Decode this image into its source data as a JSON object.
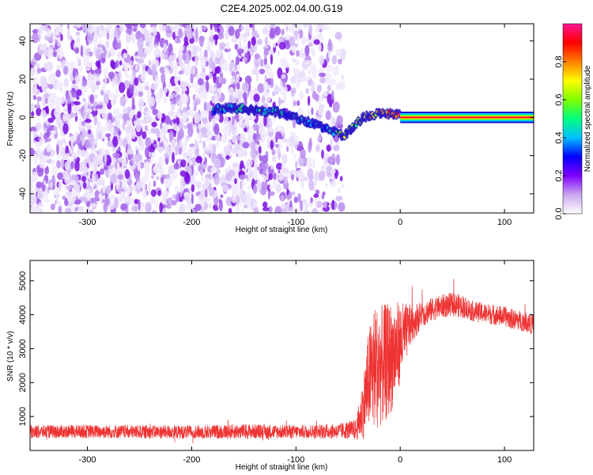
{
  "title": "C2E4.2025.002.04.00.G19",
  "chart_data": [
    {
      "type": "heatmap",
      "panel": "top",
      "xlabel": "Height of straight line (km)",
      "ylabel": "Frequency (Hz)",
      "xlim": [
        -355,
        128
      ],
      "ylim": [
        -50,
        49
      ],
      "xticks": [
        -300,
        -200,
        -100,
        0,
        100
      ],
      "yticks": [
        -40,
        -20,
        0,
        20,
        40
      ],
      "noise_region_x": [
        -355,
        -55
      ],
      "ridge": {
        "x": [
          -180,
          -160,
          -140,
          -120,
          -100,
          -80,
          -65,
          -55,
          -45,
          -35,
          -20,
          -5,
          0,
          128
        ],
        "freq_hz": [
          4,
          5,
          4,
          3,
          0,
          -4,
          -7,
          -10,
          -5,
          0,
          2,
          2,
          1,
          0
        ],
        "amplitude": [
          0.35,
          0.4,
          0.45,
          0.4,
          0.35,
          0.3,
          0.4,
          0.55,
          0.5,
          0.6,
          0.7,
          0.8,
          0.85,
          0.95
        ]
      },
      "colorbar": {
        "label": "Normalized spectral amplitude",
        "range": [
          0,
          1
        ],
        "ticks": [
          0.0,
          0.2,
          0.4,
          0.6,
          0.8
        ],
        "colors": [
          "#ffffff",
          "#c9a7ee",
          "#7f00ff",
          "#0000ff",
          "#00bfff",
          "#00ff7f",
          "#7fff00",
          "#ffff00",
          "#ff7f00",
          "#ff0000",
          "#ff1493"
        ]
      },
      "grid": false
    },
    {
      "type": "line",
      "panel": "bottom",
      "xlabel": "Height of straight line (km)",
      "ylabel": "SNR (10 * v/v)",
      "xlim": [
        -355,
        128
      ],
      "ylim": [
        0,
        5600
      ],
      "xticks": [
        -300,
        -200,
        -100,
        0,
        100
      ],
      "yticks": [
        1000,
        2000,
        3000,
        4000,
        5000
      ],
      "series": [
        {
          "color": "#ee3333",
          "x": [
            -355,
            -300,
            -250,
            -200,
            -150,
            -100,
            -60,
            -42,
            -36,
            -30,
            -26,
            -20,
            -16,
            -10,
            -5,
            0,
            10,
            20,
            30,
            40,
            50,
            60,
            70,
            80,
            90,
            100,
            110,
            120,
            128
          ],
          "y": [
            550,
            560,
            550,
            540,
            560,
            550,
            570,
            620,
            1200,
            2100,
            2400,
            2500,
            2500,
            2700,
            2900,
            3200,
            3700,
            4000,
            4150,
            4250,
            4300,
            4250,
            4100,
            4050,
            4000,
            3950,
            3850,
            3800,
            3700
          ],
          "noise_amplitude": [
            200,
            200,
            200,
            200,
            220,
            200,
            220,
            300,
            900,
            1500,
            1900,
            1800,
            1800,
            1700,
            1500,
            1200,
            600,
            400,
            350,
            350,
            350,
            350,
            300,
            300,
            300,
            300,
            300,
            300,
            300
          ]
        }
      ],
      "grid": false
    }
  ]
}
